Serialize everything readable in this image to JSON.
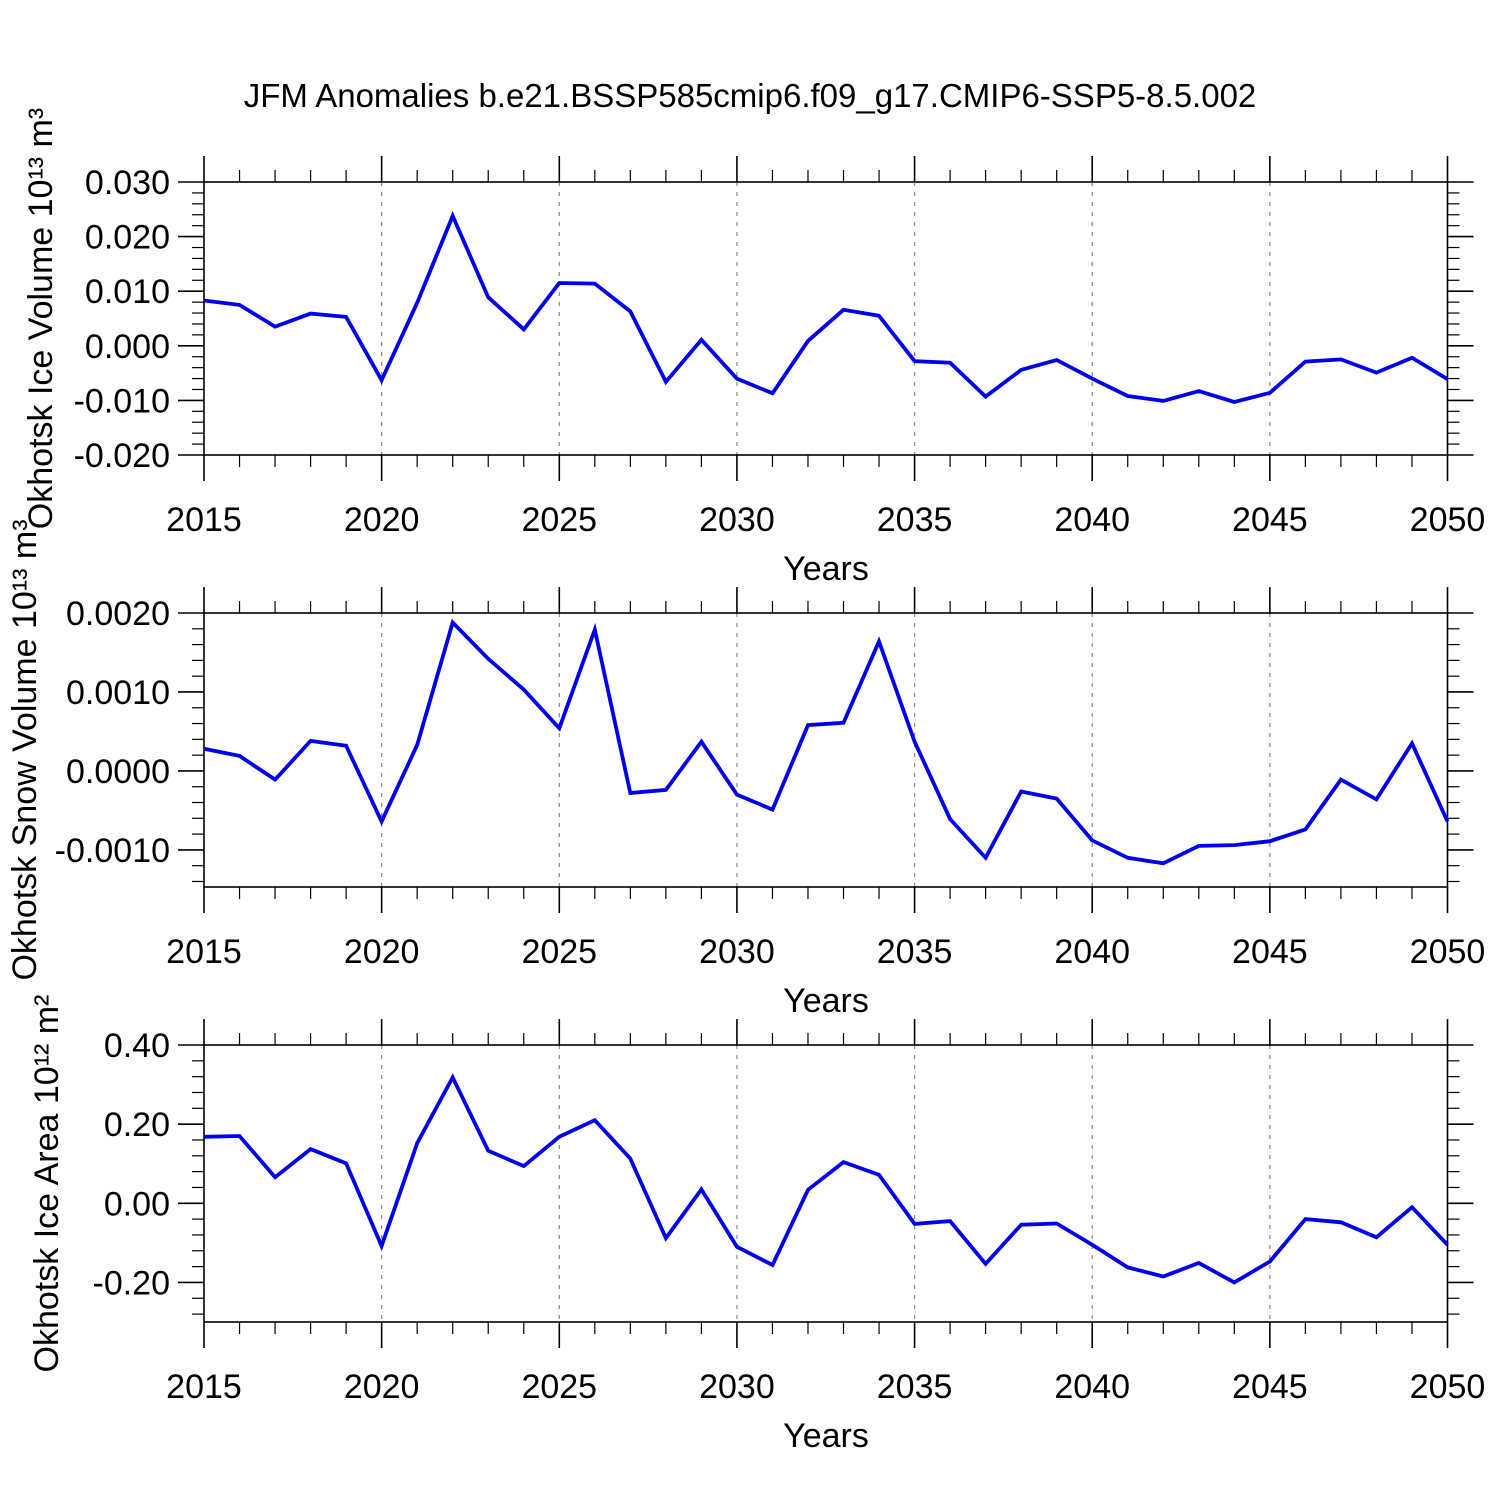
{
  "title": "JFM Anomalies b.e21.BSSP585cmip6.f09_g17.CMIP6-SSP5-8.5.002",
  "colors": {
    "line": "#0000EE",
    "axis": "#000000",
    "grid": "#888888",
    "background": "#ffffff"
  },
  "x_axis": {
    "label": "Years",
    "major_ticks": [
      2015,
      2020,
      2025,
      2030,
      2035,
      2040,
      2045,
      2050
    ],
    "tick_labels": [
      "2015",
      "2020",
      "2025",
      "2030",
      "2035",
      "2040",
      "2045",
      "2050"
    ],
    "minor_step": 1,
    "grid_x": [
      2020,
      2025,
      2030,
      2035,
      2040,
      2045
    ]
  },
  "chart_data": [
    {
      "type": "line",
      "key": "ice-volume",
      "ylabel": "Okhotsk Ice Volume 10¹³ m³",
      "xlabel": "Years",
      "ylim": [
        -0.02,
        0.03
      ],
      "yticks": [
        -0.02,
        -0.01,
        0.0,
        0.01,
        0.02,
        0.03
      ],
      "ytick_labels": [
        "-0.020",
        "-0.010",
        "0.000",
        "0.010",
        "0.020",
        "0.030"
      ],
      "y_minor_step": 0.002,
      "x": [
        2015,
        2016,
        2017,
        2018,
        2019,
        2020,
        2021,
        2022,
        2023,
        2024,
        2025,
        2026,
        2027,
        2028,
        2029,
        2030,
        2031,
        2032,
        2033,
        2034,
        2035,
        2036,
        2037,
        2038,
        2039,
        2040,
        2041,
        2042,
        2043,
        2044,
        2045,
        2046,
        2047,
        2048,
        2049,
        2050
      ],
      "values": [
        0.0083,
        0.0075,
        0.0035,
        0.0059,
        0.0053,
        -0.0063,
        0.0079,
        0.0238,
        0.0089,
        0.003,
        0.0115,
        0.0114,
        0.0063,
        -0.0066,
        0.0011,
        -0.006,
        -0.0087,
        0.0009,
        0.0066,
        0.0055,
        -0.0028,
        -0.0031,
        -0.0093,
        -0.0044,
        -0.0026,
        -0.006,
        -0.0092,
        -0.0101,
        -0.0083,
        -0.0103,
        -0.0086,
        -0.0029,
        -0.0025,
        -0.0049,
        -0.0022,
        -0.0061
      ]
    },
    {
      "type": "line",
      "key": "snow-volume",
      "ylabel": "Okhotsk Snow Volume 10¹³ m³",
      "xlabel": "Years",
      "ylim": [
        -0.00147,
        0.002
      ],
      "yticks": [
        -0.001,
        0.0,
        0.001,
        0.002
      ],
      "ytick_labels": [
        "-0.0010",
        "0.0000",
        "0.0010",
        "0.0020"
      ],
      "y_minor_step": 0.0002,
      "x": [
        2015,
        2016,
        2017,
        2018,
        2019,
        2020,
        2021,
        2022,
        2023,
        2024,
        2025,
        2026,
        2027,
        2028,
        2029,
        2030,
        2031,
        2032,
        2033,
        2034,
        2035,
        2036,
        2037,
        2038,
        2039,
        2040,
        2041,
        2042,
        2043,
        2044,
        2045,
        2046,
        2047,
        2048,
        2049,
        2050
      ],
      "values": [
        0.00028,
        0.00019,
        -0.00011,
        0.00038,
        0.00032,
        -0.00064,
        0.00033,
        0.00188,
        0.00142,
        0.00103,
        0.00054,
        0.00179,
        -0.00028,
        -0.00024,
        0.00037,
        -0.0003,
        -0.00049,
        0.00058,
        0.00061,
        0.00164,
        0.00037,
        -0.00061,
        -0.0011,
        -0.00026,
        -0.00035,
        -0.00088,
        -0.0011,
        -0.00117,
        -0.00095,
        -0.00094,
        -0.00089,
        -0.00074,
        -0.00011,
        -0.00036,
        0.00035,
        -0.00064
      ]
    },
    {
      "type": "line",
      "key": "ice-area",
      "ylabel": "Okhotsk Ice Area 10¹² m²",
      "xlabel": "Years",
      "ylim": [
        -0.3,
        0.4
      ],
      "yticks": [
        -0.2,
        0.0,
        0.2,
        0.4
      ],
      "ytick_labels": [
        "-0.20",
        "0.00",
        "0.20",
        "0.40"
      ],
      "y_minor_step": 0.04,
      "x": [
        2015,
        2016,
        2017,
        2018,
        2019,
        2020,
        2021,
        2022,
        2023,
        2024,
        2025,
        2026,
        2027,
        2028,
        2029,
        2030,
        2031,
        2032,
        2033,
        2034,
        2035,
        2036,
        2037,
        2038,
        2039,
        2040,
        2041,
        2042,
        2043,
        2044,
        2045,
        2046,
        2047,
        2048,
        2049,
        2050
      ],
      "values": [
        0.168,
        0.17,
        0.066,
        0.137,
        0.101,
        -0.108,
        0.152,
        0.318,
        0.133,
        0.094,
        0.168,
        0.21,
        0.113,
        -0.088,
        0.035,
        -0.11,
        -0.156,
        0.034,
        0.104,
        0.072,
        -0.052,
        -0.045,
        -0.153,
        -0.054,
        -0.051,
        -0.105,
        -0.162,
        -0.185,
        -0.151,
        -0.2,
        -0.147,
        -0.04,
        -0.048,
        -0.086,
        -0.01,
        -0.105
      ]
    }
  ]
}
